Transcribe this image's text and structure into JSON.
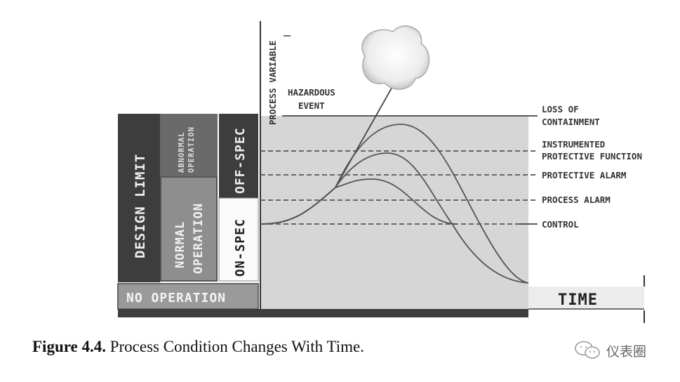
{
  "figure": {
    "blocks": {
      "design_limit": "DESIGN LIMIT",
      "abnormal_operation": [
        "ABNORMAL",
        "OPERATION"
      ],
      "normal_operation": [
        "NORMAL",
        "OPERATION"
      ],
      "off_spec": "OFF-SPEC",
      "on_spec": "ON-SPEC",
      "no_operation": "NO OPERATION"
    },
    "y_axis_label": "PROCESS VARIABLE",
    "x_axis_label": "TIME",
    "hazardous_event": [
      "HAZARDOUS",
      "EVENT"
    ],
    "levels": {
      "loss_of_containment": [
        "LOSS OF",
        "CONTAINMENT"
      ],
      "instrumented_protective_function": [
        "INSTRUMENTED",
        "PROTECTIVE FUNCTION"
      ],
      "protective_alarm": "PROTECTIVE ALARM",
      "process_alarm": "PROCESS ALARM",
      "control": "CONTROL"
    },
    "colors": {
      "dark": "#3d3d3d",
      "mid": "#6a6a6a",
      "light": "#9a9a9a",
      "plot_area": "#d6d6d6"
    }
  },
  "caption": {
    "number": "Figure 4.4.",
    "text": " Process Condition Changes With Time."
  },
  "watermark": {
    "icon": "wechat-icon",
    "text": "仪表圈"
  }
}
